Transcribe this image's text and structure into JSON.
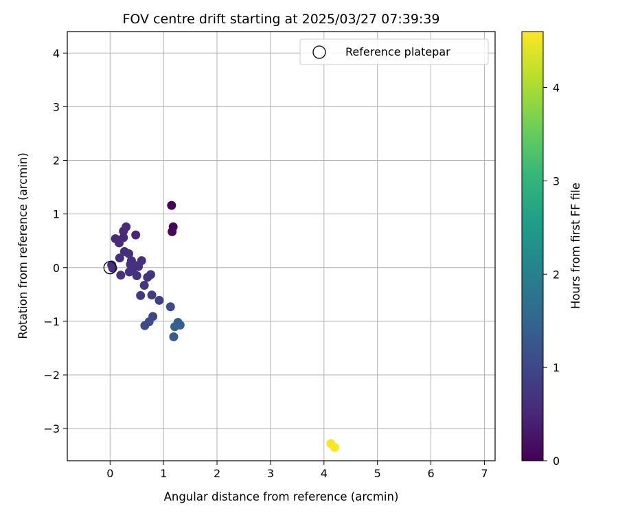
{
  "chart_data": {
    "type": "scatter",
    "title": "FOV centre drift starting at 2025/03/27 07:39:39",
    "xlabel": "Angular distance from reference (arcmin)",
    "ylabel": "Rotation from reference (arcmin)",
    "xlim": [
      -0.8,
      7.2
    ],
    "ylim": [
      -3.6,
      4.4
    ],
    "xticks": [
      0,
      1,
      2,
      3,
      4,
      5,
      6,
      7
    ],
    "yticks": [
      -3,
      -2,
      -1,
      0,
      1,
      2,
      3,
      4
    ],
    "grid": true,
    "legend": {
      "placement": "top-right",
      "entries": [
        {
          "label": "Reference platepar",
          "marker": "open-circle"
        }
      ]
    },
    "reference_point": {
      "x": 0,
      "y": 0
    },
    "colorbar": {
      "label": "Hours from first FF file",
      "range": [
        0,
        4.6
      ],
      "ticks": [
        0,
        1,
        2,
        3,
        4
      ],
      "colormap": "viridis",
      "colormap_stops": [
        "#440154",
        "#482878",
        "#3e4989",
        "#31688e",
        "#26828e",
        "#1f9e89",
        "#35b779",
        "#6ece58",
        "#b5de2b",
        "#fde725"
      ]
    },
    "series": [
      {
        "points": [
          {
            "x": 1.15,
            "y": 1.16,
            "c": 0.05
          },
          {
            "x": 1.18,
            "y": 0.76,
            "c": 0.08
          },
          {
            "x": 1.16,
            "y": 0.67,
            "c": 0.1
          },
          {
            "x": 0.3,
            "y": 0.76,
            "c": 0.55
          },
          {
            "x": 0.25,
            "y": 0.68,
            "c": 0.55
          },
          {
            "x": 0.48,
            "y": 0.61,
            "c": 0.5
          },
          {
            "x": 0.1,
            "y": 0.54,
            "c": 0.55
          },
          {
            "x": 0.25,
            "y": 0.56,
            "c": 0.55
          },
          {
            "x": 0.17,
            "y": 0.46,
            "c": 0.6
          },
          {
            "x": 0.27,
            "y": 0.3,
            "c": 0.6
          },
          {
            "x": 0.35,
            "y": 0.26,
            "c": 0.62
          },
          {
            "x": 0.18,
            "y": 0.18,
            "c": 0.62
          },
          {
            "x": 0.4,
            "y": 0.13,
            "c": 0.65
          },
          {
            "x": 0.59,
            "y": 0.13,
            "c": 0.65
          },
          {
            "x": 0.38,
            "y": 0.06,
            "c": 0.65
          },
          {
            "x": 0.03,
            "y": 0.05,
            "c": 0.6
          },
          {
            "x": 0.45,
            "y": 0.05,
            "c": 0.65
          },
          {
            "x": 0.53,
            "y": 0.02,
            "c": 0.65
          },
          {
            "x": 0.05,
            "y": -0.01,
            "c": 0.6
          },
          {
            "x": 0.42,
            "y": -0.03,
            "c": 0.65
          },
          {
            "x": 0.36,
            "y": -0.08,
            "c": 0.65
          },
          {
            "x": 0.2,
            "y": -0.14,
            "c": 0.62
          },
          {
            "x": 0.5,
            "y": -0.15,
            "c": 0.65
          },
          {
            "x": 0.76,
            "y": -0.13,
            "c": 0.7
          },
          {
            "x": 0.7,
            "y": -0.18,
            "c": 0.7
          },
          {
            "x": 0.64,
            "y": -0.33,
            "c": 0.75
          },
          {
            "x": 0.57,
            "y": -0.52,
            "c": 0.78
          },
          {
            "x": 0.78,
            "y": -0.51,
            "c": 0.82
          },
          {
            "x": 0.92,
            "y": -0.61,
            "c": 0.88
          },
          {
            "x": 1.13,
            "y": -0.73,
            "c": 1.05
          },
          {
            "x": 0.8,
            "y": -0.91,
            "c": 1.0
          },
          {
            "x": 0.73,
            "y": -1.01,
            "c": 1.05
          },
          {
            "x": 0.65,
            "y": -1.08,
            "c": 1.05
          },
          {
            "x": 1.27,
            "y": -1.02,
            "c": 1.4
          },
          {
            "x": 1.31,
            "y": -1.07,
            "c": 1.4
          },
          {
            "x": 1.21,
            "y": -1.1,
            "c": 1.45
          },
          {
            "x": 1.19,
            "y": -1.29,
            "c": 1.35
          },
          {
            "x": 4.13,
            "y": -3.28,
            "c": 4.55
          },
          {
            "x": 4.2,
            "y": -3.35,
            "c": 4.6
          }
        ]
      }
    ]
  }
}
